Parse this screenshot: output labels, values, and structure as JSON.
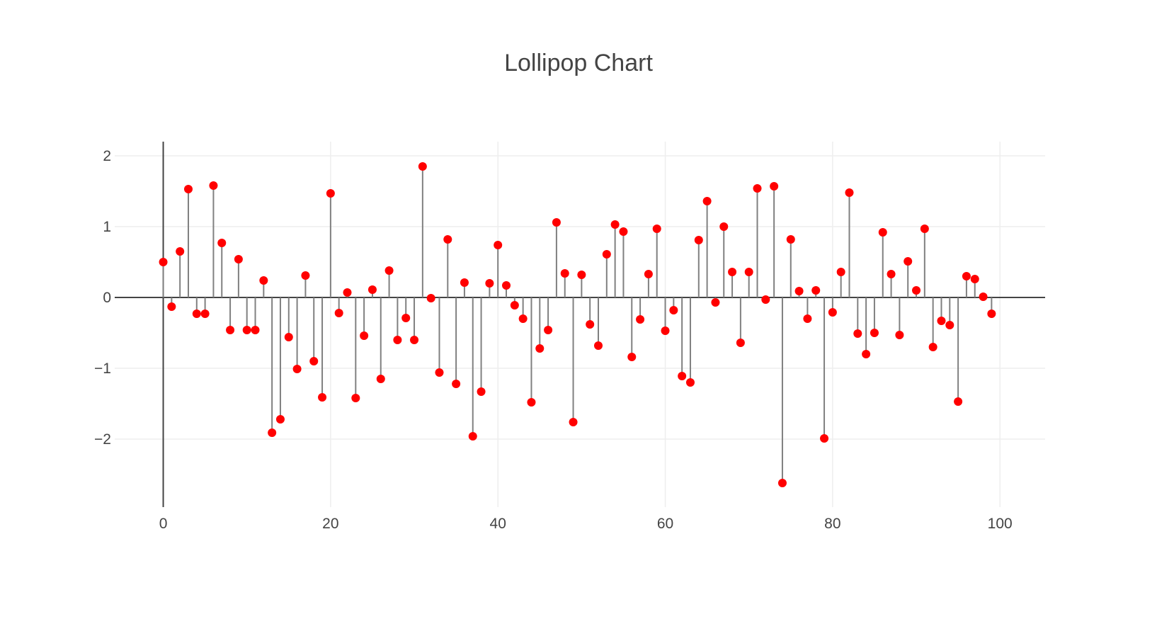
{
  "chart_data": {
    "type": "scatter",
    "subtype": "lollipop",
    "title": "Lollipop Chart",
    "xlabel": "",
    "ylabel": "",
    "xlim": [
      -5.8,
      105.4
    ],
    "ylim": [
      -2.96,
      2.2
    ],
    "x_ticks": [
      0,
      20,
      40,
      60,
      80,
      100
    ],
    "x_tick_labels": [
      "0",
      "20",
      "40",
      "60",
      "80",
      "100"
    ],
    "y_ticks": [
      -2,
      -1,
      0,
      1,
      2
    ],
    "y_tick_labels": [
      "−2",
      "−1",
      "0",
      "1",
      "2"
    ],
    "grid": true,
    "legend": "none",
    "colors": {
      "marker": "#ff0000",
      "stem": "#808080",
      "grid": "#eeeeee",
      "axis": "#444444",
      "text": "#444444"
    },
    "x": [
      0,
      1,
      2,
      3,
      4,
      5,
      6,
      7,
      8,
      9,
      10,
      11,
      12,
      13,
      14,
      15,
      16,
      17,
      18,
      19,
      20,
      21,
      22,
      23,
      24,
      25,
      26,
      27,
      28,
      29,
      30,
      31,
      32,
      33,
      34,
      35,
      36,
      37,
      38,
      39,
      40,
      41,
      42,
      43,
      44,
      45,
      46,
      47,
      48,
      49,
      50,
      51,
      52,
      53,
      54,
      55,
      56,
      57,
      58,
      59,
      60,
      61,
      62,
      63,
      64,
      65,
      66,
      67,
      68,
      69,
      70,
      71,
      72,
      73,
      74,
      75,
      76,
      77,
      78,
      79,
      80,
      81,
      82,
      83,
      84,
      85,
      86,
      87,
      88,
      89,
      90,
      91,
      92,
      93,
      94,
      95,
      96,
      97,
      98,
      99
    ],
    "y": [
      0.5,
      -0.13,
      0.65,
      1.53,
      -0.23,
      -0.23,
      1.58,
      0.77,
      -0.46,
      0.54,
      -0.46,
      -0.46,
      0.24,
      -1.91,
      -1.72,
      -0.56,
      -1.01,
      0.31,
      -0.9,
      -1.41,
      1.47,
      -0.22,
      0.07,
      -1.42,
      -0.54,
      0.11,
      -1.15,
      0.38,
      -0.6,
      -0.29,
      -0.6,
      1.85,
      -0.01,
      -1.06,
      0.82,
      -1.22,
      0.21,
      -1.96,
      -1.33,
      0.2,
      0.74,
      0.17,
      -0.11,
      -0.3,
      -1.48,
      -0.72,
      -0.46,
      1.06,
      0.34,
      -1.76,
      0.32,
      -0.38,
      -0.68,
      0.61,
      1.03,
      0.93,
      -0.84,
      -0.31,
      0.33,
      0.97,
      -0.47,
      -0.18,
      -1.11,
      -1.2,
      0.81,
      1.36,
      -0.07,
      1.0,
      0.36,
      -0.64,
      0.36,
      1.54,
      -0.03,
      1.57,
      -2.62,
      0.82,
      0.09,
      -0.3,
      0.1,
      -1.99,
      -0.21,
      0.36,
      1.48,
      -0.51,
      -0.8,
      -0.5,
      0.92,
      0.33,
      -0.53,
      0.51,
      0.1,
      0.97,
      -0.7,
      -0.33,
      -0.39,
      -1.47,
      0.3,
      0.26,
      0.01,
      -0.23
    ]
  }
}
